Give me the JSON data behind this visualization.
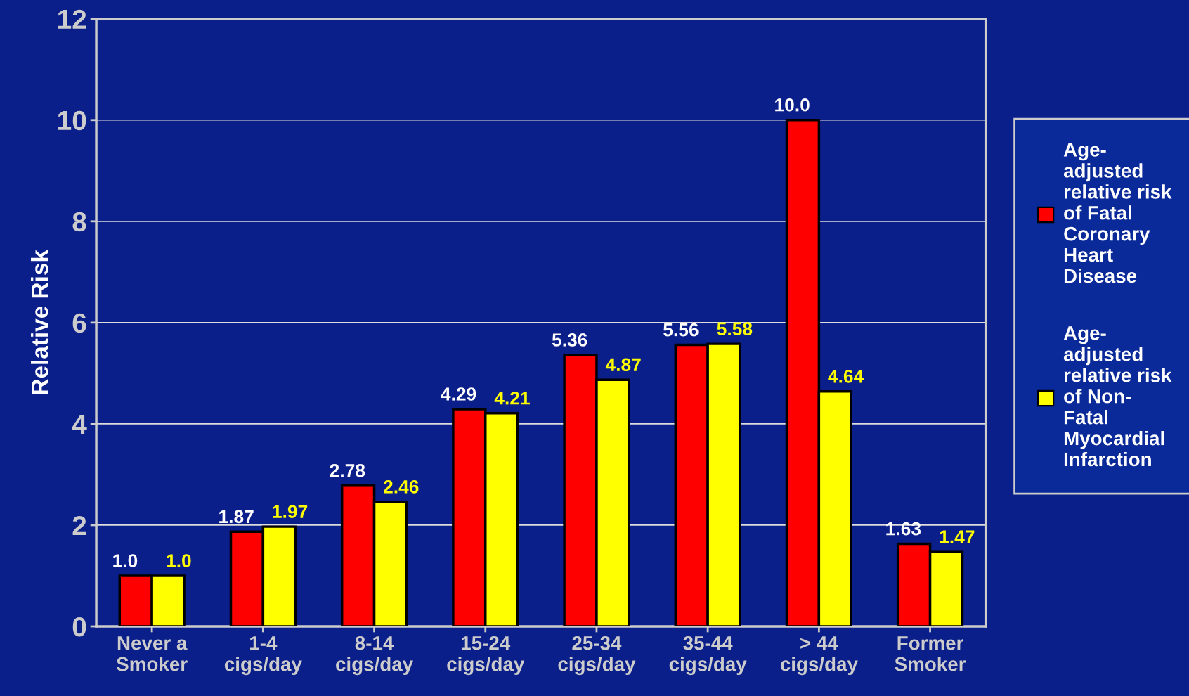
{
  "chart_data": {
    "type": "bar",
    "ylabel": "Relative Risk",
    "categories": [
      "Never a\nSmoker",
      "1-4\ncigs/day",
      "8-14\ncigs/day",
      "15-24\ncigs/day",
      "25-34\ncigs/day",
      "35-44\ncigs/day",
      "> 44\ncigs/day",
      "Former\nSmoker"
    ],
    "series": [
      {
        "name": "Age-\nadjusted\nrelative risk\nof Fatal\nCoronary\nHeart\nDisease",
        "color": "#ff0000",
        "values": [
          1.0,
          1.87,
          2.78,
          4.29,
          5.36,
          5.56,
          10.0,
          1.63
        ],
        "value_labels": [
          "1.0",
          "1.87",
          "2.78",
          "4.29",
          "5.36",
          "5.56",
          "10.0",
          "1.63"
        ]
      },
      {
        "name": "Age-\nadjusted\nrelative risk\nof Non-\nFatal\nMyocardial\nInfarction",
        "color": "#ffff00",
        "values": [
          1.0,
          1.97,
          2.46,
          4.21,
          4.87,
          5.58,
          4.64,
          1.47
        ],
        "value_labels": [
          "1.0",
          "1.97",
          "2.46",
          "4.21",
          "4.87",
          "5.58",
          "4.64",
          "1.47"
        ]
      }
    ],
    "ylim": [
      0,
      12
    ],
    "yticks": [
      0,
      2,
      4,
      6,
      8,
      10,
      12
    ],
    "grid": "y",
    "legend": "right"
  }
}
